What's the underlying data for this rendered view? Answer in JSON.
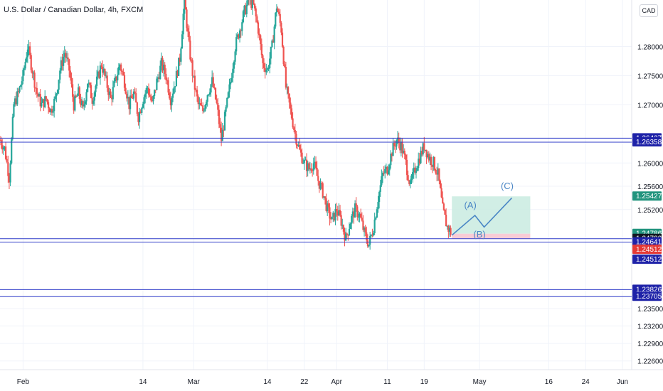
{
  "header": {
    "title": "U.S. Dollar / Canadian Dollar, 4h, FXCM",
    "currency_button": "CAD"
  },
  "colors": {
    "up": "#26a69a",
    "down": "#ef5350",
    "hline": "#2f3bc8",
    "grid": "#f0f3fa",
    "target_zone": "#c9ebe1",
    "stop_zone": "#f7c6d2",
    "wave": "#4a86c5"
  },
  "chart_data": {
    "type": "candlestick",
    "symbol": "USDCAD",
    "timeframe": "4h",
    "ylim": [
      1.2245,
      1.288
    ],
    "y_ticks": [
      "1.28000",
      "1.27500",
      "1.27000",
      "1.26000",
      "1.25600",
      "1.25200",
      "1.23500",
      "1.23200",
      "1.22900",
      "1.22600"
    ],
    "x_ticks": [
      {
        "label": "Feb",
        "x": 22
      },
      {
        "label": "14",
        "x": 48
      },
      {
        "label": "Mar",
        "x": 59
      },
      {
        "label": "14",
        "x": 75
      },
      {
        "label": "22",
        "x": 83
      },
      {
        "label": "Apr",
        "x": 90
      },
      {
        "label": "11",
        "x": 101
      },
      {
        "label": "19",
        "x": 109
      },
      {
        "label": "May",
        "x": 121
      },
      {
        "label": "16",
        "x": 136
      },
      {
        "label": "24",
        "x": 144
      },
      {
        "label": "Jun",
        "x": 152
      }
    ],
    "x_range": [
      17,
      154
    ],
    "price_path": [
      [
        17,
        1.264
      ],
      [
        18,
        1.2625
      ],
      [
        19,
        1.2575
      ],
      [
        20,
        1.27
      ],
      [
        21,
        1.272
      ],
      [
        22,
        1.275
      ],
      [
        23,
        1.28
      ],
      [
        24,
        1.276
      ],
      [
        25,
        1.272
      ],
      [
        26,
        1.27
      ],
      [
        27,
        1.271
      ],
      [
        28,
        1.269
      ],
      [
        29,
        1.271
      ],
      [
        30,
        1.276
      ],
      [
        31,
        1.279
      ],
      [
        32,
        1.276
      ],
      [
        33,
        1.27
      ],
      [
        34,
        1.272
      ],
      [
        35,
        1.269
      ],
      [
        36,
        1.274
      ],
      [
        37,
        1.271
      ],
      [
        38,
        1.274
      ],
      [
        39,
        1.277
      ],
      [
        40,
        1.274
      ],
      [
        41,
        1.271
      ],
      [
        42,
        1.274
      ],
      [
        43,
        1.277
      ],
      [
        44,
        1.274
      ],
      [
        45,
        1.27
      ],
      [
        46,
        1.272
      ],
      [
        47,
        1.268
      ],
      [
        48,
        1.271
      ],
      [
        49,
        1.273
      ],
      [
        50,
        1.27
      ],
      [
        51,
        1.274
      ],
      [
        52,
        1.277
      ],
      [
        53,
        1.275
      ],
      [
        54,
        1.271
      ],
      [
        55,
        1.274
      ],
      [
        56,
        1.278
      ],
      [
        57,
        1.288
      ],
      [
        58,
        1.28
      ],
      [
        59,
        1.274
      ],
      [
        60,
        1.27
      ],
      [
        61,
        1.269
      ],
      [
        62,
        1.272
      ],
      [
        63,
        1.274
      ],
      [
        64,
        1.27
      ],
      [
        65,
        1.264
      ],
      [
        66,
        1.269
      ],
      [
        67,
        1.274
      ],
      [
        68,
        1.28
      ],
      [
        69,
        1.283
      ],
      [
        70,
        1.286
      ],
      [
        71,
        1.288
      ],
      [
        72,
        1.287
      ],
      [
        73,
        1.283
      ],
      [
        74,
        1.277
      ],
      [
        75,
        1.276
      ],
      [
        76,
        1.28
      ],
      [
        77,
        1.287
      ],
      [
        78,
        1.283
      ],
      [
        79,
        1.273
      ],
      [
        80,
        1.269
      ],
      [
        81,
        1.265
      ],
      [
        82,
        1.262
      ],
      [
        83,
        1.26
      ],
      [
        84,
        1.259
      ],
      [
        85,
        1.26
      ],
      [
        86,
        1.257
      ],
      [
        87,
        1.255
      ],
      [
        88,
        1.252
      ],
      [
        89,
        1.25
      ],
      [
        90,
        1.252
      ],
      [
        91,
        1.25
      ],
      [
        92,
        1.247
      ],
      [
        93,
        1.25
      ],
      [
        94,
        1.252
      ],
      [
        95,
        1.251
      ],
      [
        96,
        1.248
      ],
      [
        97,
        1.246
      ],
      [
        98,
        1.249
      ],
      [
        99,
        1.254
      ],
      [
        100,
        1.258
      ],
      [
        101,
        1.259
      ],
      [
        102,
        1.262
      ],
      [
        103,
        1.264
      ],
      [
        104,
        1.263
      ],
      [
        105,
        1.26
      ],
      [
        106,
        1.256
      ],
      [
        107,
        1.259
      ],
      [
        108,
        1.261
      ],
      [
        109,
        1.263
      ],
      [
        110,
        1.261
      ],
      [
        111,
        1.26
      ],
      [
        112,
        1.258
      ],
      [
        113,
        1.252
      ],
      [
        114,
        1.249
      ],
      [
        115,
        1.2478
      ]
    ],
    "horizontal_levels": [
      1.26427,
      1.26358,
      1.247,
      1.24641,
      1.23826,
      1.23705
    ],
    "projection": {
      "target_zone": {
        "x_start": 115,
        "x_end": 132,
        "y_low": 1.24786,
        "y_high": 1.25427
      },
      "stop_zone": {
        "x_start": 115,
        "x_end": 132,
        "y_low": 1.247,
        "y_high": 1.24786
      },
      "wave_path": [
        [
          115,
          1.2476
        ],
        [
          120,
          1.251
        ],
        [
          122,
          1.249
        ],
        [
          128,
          1.254
        ]
      ],
      "labels": [
        {
          "text": "(A)",
          "x": 119,
          "y": 1.2522
        },
        {
          "text": "(B)",
          "x": 121,
          "y": 1.2472
        },
        {
          "text": "(C)",
          "x": 127,
          "y": 1.2555
        }
      ]
    },
    "price_labels": [
      {
        "text": "1.26427",
        "value": 1.26427,
        "bg": "#1e22a8",
        "fg": "#ffffff"
      },
      {
        "text": "1.26358",
        "value": 1.26358,
        "bg": "#1e22a8",
        "fg": "#ffffff"
      },
      {
        "text": "1.25427",
        "value": 1.25427,
        "bg": "#22947e",
        "fg": "#ffffff"
      },
      {
        "text": "1.24786",
        "value": 1.24786,
        "bg": "#22947e",
        "fg": "#ffffff",
        "sub": "02:27:41"
      },
      {
        "text": "1.24700",
        "value": 1.247,
        "bg": "#131722",
        "fg": "#ffffff"
      },
      {
        "text": "1.24641",
        "value": 1.24641,
        "bg": "#1e22a8",
        "fg": "#ffffff"
      },
      {
        "text": "1.24512",
        "value": 1.24512,
        "bg": "#e53935",
        "fg": "#ffffff"
      },
      {
        "text": "1.24512",
        "value": 1.24512,
        "bg": "#1e22a8",
        "fg": "#ffffff",
        "offset": 1
      },
      {
        "text": "1.23826",
        "value": 1.23826,
        "bg": "#1e22a8",
        "fg": "#ffffff"
      },
      {
        "text": "1.23705",
        "value": 1.23705,
        "bg": "#1e22a8",
        "fg": "#ffffff"
      }
    ]
  }
}
